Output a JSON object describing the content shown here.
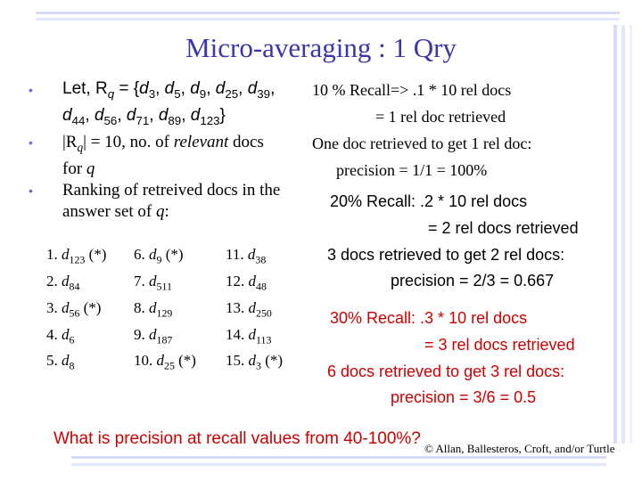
{
  "title": "Micro-averaging : 1 Qry",
  "left": {
    "bullet1": {
      "prefix": "Let, R",
      "sub_q": "q",
      "eq": " = {",
      "d": "d",
      "subs": [
        "3",
        "5",
        "9",
        "25",
        "39",
        "44",
        "56",
        "71",
        "89",
        "123"
      ],
      "close": "}"
    },
    "bullet2": {
      "text1": "|R",
      "sub": "q",
      "text2": "| = 10, no. of ",
      "italic": "relevant",
      "text3": " docs",
      "line2a": "for ",
      "line2i": "q"
    },
    "bullet3": {
      "line1": "Ranking of retreived docs in the",
      "line2a": "answer set of ",
      "line2i": "q",
      "line2b": ":"
    }
  },
  "ranking": [
    [
      {
        "num": "1.",
        "sub": "123",
        "mark": "(*)"
      },
      {
        "num": "6.",
        "sub": "9",
        "mark": "(*)"
      },
      {
        "num": "11.",
        "sub": "38",
        "mark": ""
      }
    ],
    [
      {
        "num": "2.",
        "sub": "84",
        "mark": ""
      },
      {
        "num": "7.",
        "sub": "511",
        "mark": ""
      },
      {
        "num": "12.",
        "sub": "48",
        "mark": ""
      }
    ],
    [
      {
        "num": "3.",
        "sub": "56",
        "mark": "(*)"
      },
      {
        "num": "8.",
        "sub": "129",
        "mark": ""
      },
      {
        "num": "13.",
        "sub": "250",
        "mark": ""
      }
    ],
    [
      {
        "num": "4.",
        "sub": "6",
        "mark": ""
      },
      {
        "num": "9.",
        "sub": "187",
        "mark": ""
      },
      {
        "num": "14.",
        "sub": "113",
        "mark": ""
      }
    ],
    [
      {
        "num": "5.",
        "sub": "8",
        "mark": ""
      },
      {
        "num": "10.",
        "sub": "25",
        "mark": "(*)"
      },
      {
        "num": "15.",
        "sub": "3",
        "mark": "(*)"
      }
    ]
  ],
  "right": {
    "r10": {
      "l1": "10 % Recall=> .1 * 10 rel docs",
      "l2": "= 1 rel doc retrieved",
      "l3": "One doc retrieved to get 1 rel doc:",
      "l4": "precision = 1/1 = 100%"
    },
    "r20": {
      "l1": "20% Recall: .2 * 10 rel docs",
      "l2": "= 2 rel docs retrieved",
      "l3": "3 docs retrieved to get 2 rel docs:",
      "l4": "precision = 2/3 = 0.667"
    },
    "r30": {
      "l1": "30% Recall: .3 * 10 rel docs",
      "l2": "= 3 rel docs retrieved",
      "l3": "6 docs retrieved to get 3 rel docs:",
      "l4": "precision = 3/6 = 0.5"
    }
  },
  "question": "What is precision at recall values from 40-100%?",
  "copyright": "© Allan, Ballesteros, Croft, and/or Turtle",
  "colors": {
    "title": "#3b37a9",
    "red": "#cc0000",
    "bullet": "#6e69d1"
  }
}
